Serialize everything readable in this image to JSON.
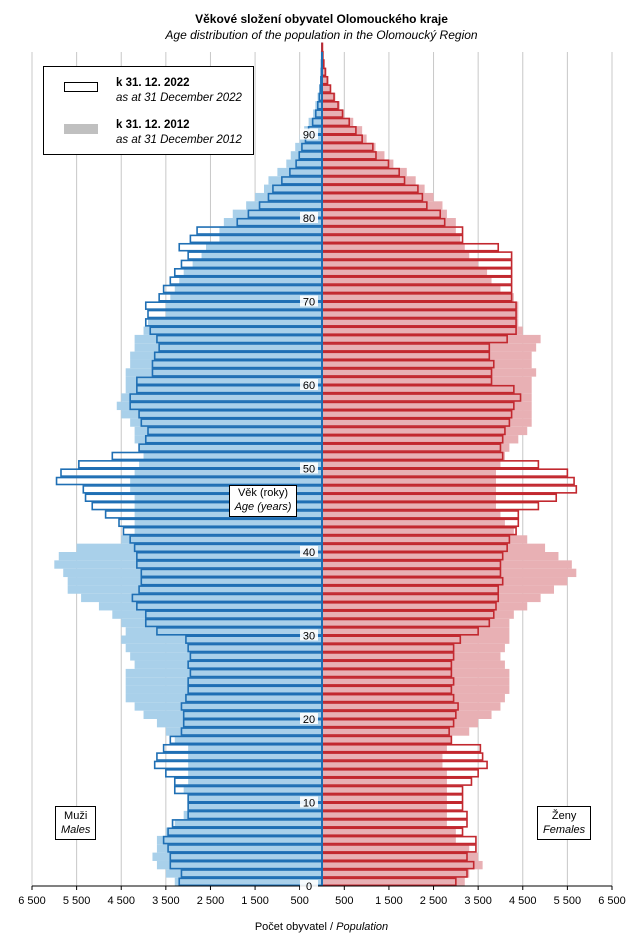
{
  "title": "Věkové složení obyvatel Olomouckého kraje",
  "subtitle": "Age distribution of the population  in the Olomoucký Region",
  "legend": {
    "current_label": "k 31. 12. 2022",
    "current_sublabel": "as at 31 December 2022",
    "previous_label": "k 31. 12. 2012",
    "previous_sublabel": "as at 31 December 2012"
  },
  "males_label": "Muži",
  "males_sublabel": "Males",
  "females_label": "Ženy",
  "females_sublabel": "Females",
  "age_label": "Věk (roky)",
  "age_sublabel": "Age (years)",
  "x_title_cz": "Počet obyvatel",
  "x_title_en": "Population",
  "colors": {
    "male_outline": "#1f6fb4",
    "female_outline": "#c2282f",
    "male_fill": "#a9d0ea",
    "female_fill": "#e8b0b4",
    "legend_grey": "#c0c0c0"
  },
  "chart_data": {
    "type": "bar",
    "orientation": "horizontal population pyramid",
    "x_ticks": [
      "6 500",
      "5 500",
      "4 500",
      "3 500",
      "2 500",
      "1 500",
      "500",
      "500",
      "1 500",
      "2 500",
      "3 500",
      "4 500",
      "5 500",
      "6 500"
    ],
    "y_ticks": [
      0,
      10,
      20,
      30,
      40,
      50,
      60,
      70,
      80,
      90
    ],
    "ages": [
      0,
      1,
      2,
      3,
      4,
      5,
      6,
      7,
      8,
      9,
      10,
      11,
      12,
      13,
      14,
      15,
      16,
      17,
      18,
      19,
      20,
      21,
      22,
      23,
      24,
      25,
      26,
      27,
      28,
      29,
      30,
      31,
      32,
      33,
      34,
      35,
      36,
      37,
      38,
      39,
      40,
      41,
      42,
      43,
      44,
      45,
      46,
      47,
      48,
      49,
      50,
      51,
      52,
      53,
      54,
      55,
      56,
      57,
      58,
      59,
      60,
      61,
      62,
      63,
      64,
      65,
      66,
      67,
      68,
      69,
      70,
      71,
      72,
      73,
      74,
      75,
      76,
      77,
      78,
      79,
      80,
      81,
      82,
      83,
      84,
      85,
      86,
      87,
      88,
      89,
      90,
      91,
      92,
      93,
      94,
      95,
      96,
      97,
      98,
      99,
      100
    ],
    "series": [
      {
        "name": "k 31. 12. 2022",
        "males": [
          3200,
          3150,
          3400,
          3400,
          3450,
          3550,
          3450,
          3350,
          3000,
          3000,
          3000,
          3300,
          3300,
          3500,
          3750,
          3700,
          3550,
          3400,
          3150,
          3100,
          3100,
          3150,
          3050,
          3000,
          3000,
          2950,
          3000,
          2950,
          3000,
          3050,
          3700,
          3950,
          3950,
          4150,
          4250,
          4100,
          4050,
          4050,
          4150,
          4150,
          4200,
          4300,
          4450,
          4550,
          4850,
          5150,
          5300,
          5350,
          5950,
          5850,
          5450,
          4700,
          4100,
          3950,
          3900,
          4050,
          4100,
          4300,
          4300,
          4150,
          4150,
          3800,
          3800,
          3750,
          3650,
          3700,
          3850,
          3950,
          3900,
          3950,
          3650,
          3550,
          3400,
          3300,
          3150,
          3000,
          3200,
          2950,
          2800,
          1900,
          1650,
          1400,
          1200,
          1100,
          900,
          720,
          580,
          510,
          450,
          370,
          300,
          210,
          140,
          95,
          60,
          40,
          25,
          15,
          10,
          6,
          3
        ],
        "females": [
          3000,
          3250,
          3400,
          3250,
          3450,
          3450,
          3150,
          3250,
          3250,
          3150,
          3150,
          3150,
          3350,
          3500,
          3700,
          3600,
          3550,
          2900,
          2850,
          2950,
          3000,
          3050,
          2950,
          2900,
          2950,
          2900,
          2900,
          2950,
          2950,
          3100,
          3500,
          3750,
          3850,
          3900,
          3950,
          3950,
          4050,
          4000,
          4000,
          4050,
          4150,
          4200,
          4350,
          4400,
          4400,
          4850,
          5250,
          5700,
          5650,
          5500,
          4850,
          4050,
          4000,
          4050,
          4100,
          4200,
          4250,
          4300,
          4450,
          4300,
          3800,
          3800,
          3850,
          3750,
          3750,
          4150,
          4350,
          4350,
          4350,
          4350,
          4250,
          4250,
          4250,
          4250,
          4250,
          4250,
          3950,
          3150,
          3150,
          2750,
          2650,
          2350,
          2250,
          2150,
          1850,
          1730,
          1490,
          1210,
          1140,
          900,
          760,
          610,
          460,
          360,
          270,
          190,
          120,
          75,
          40,
          20,
          10
        ]
      },
      {
        "name": "k 31. 12. 2012",
        "males": [
          3300,
          3500,
          3700,
          3800,
          3700,
          3700,
          3500,
          3300,
          3100,
          3000,
          3000,
          3100,
          3000,
          3000,
          3000,
          3000,
          3000,
          3300,
          3500,
          3700,
          4000,
          4200,
          4400,
          4400,
          4400,
          4400,
          4200,
          4300,
          4400,
          4500,
          4400,
          4500,
          4700,
          5000,
          5400,
          5700,
          5700,
          5800,
          6000,
          5900,
          5500,
          4500,
          4200,
          4200,
          4200,
          4200,
          4200,
          4300,
          4300,
          4200,
          4100,
          4000,
          4100,
          4200,
          4200,
          4300,
          4500,
          4600,
          4500,
          4400,
          4400,
          4400,
          4300,
          4300,
          4200,
          4200,
          4000,
          3900,
          3500,
          3500,
          3400,
          3300,
          3200,
          3100,
          2900,
          2700,
          2600,
          2300,
          2300,
          2200,
          2000,
          1700,
          1500,
          1300,
          1200,
          1000,
          800,
          700,
          600,
          500,
          400,
          300,
          200,
          150,
          100,
          60,
          40,
          20,
          10,
          5,
          2
        ],
        "females": [
          3200,
          3300,
          3600,
          3500,
          3300,
          3000,
          3000,
          2800,
          2800,
          2800,
          2800,
          2800,
          2800,
          2800,
          2700,
          2700,
          2800,
          2900,
          3300,
          3500,
          3800,
          4000,
          4100,
          4200,
          4200,
          4200,
          4100,
          4000,
          4100,
          4200,
          4200,
          4200,
          4300,
          4600,
          4900,
          5200,
          5500,
          5700,
          5600,
          5300,
          5000,
          4600,
          4300,
          4100,
          4000,
          3900,
          3900,
          3900,
          3900,
          3900,
          4000,
          4100,
          4200,
          4400,
          4600,
          4700,
          4700,
          4700,
          4700,
          4700,
          4700,
          4800,
          4700,
          4700,
          4800,
          4900,
          4500,
          4400,
          4400,
          4400,
          4300,
          4000,
          3800,
          3700,
          3500,
          3300,
          3200,
          3100,
          3000,
          3000,
          2800,
          2700,
          2500,
          2300,
          2100,
          1900,
          1600,
          1400,
          1200,
          1000,
          900,
          700,
          500,
          400,
          300,
          200,
          150,
          100,
          60,
          30,
          15
        ]
      }
    ]
  }
}
